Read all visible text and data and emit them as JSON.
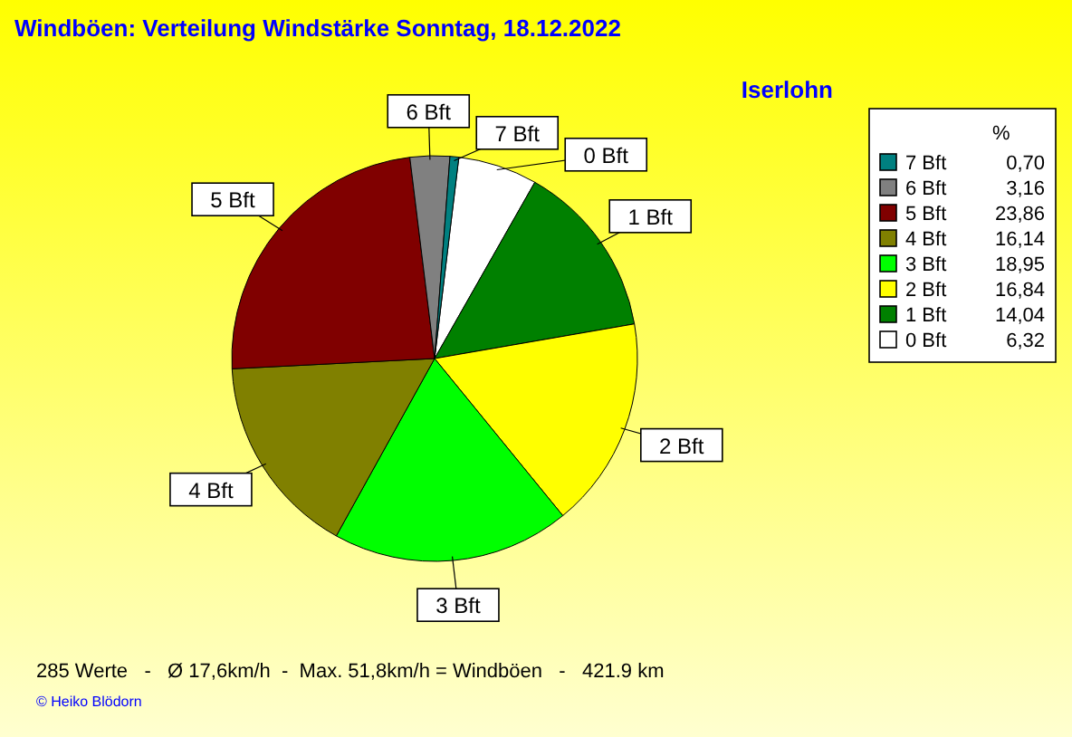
{
  "chart_data": {
    "type": "pie",
    "title": "Windböen: Verteilung Windstärke  Sonntag, 18.12.2022",
    "subtitle": "Iserlohn",
    "legend_title": "%",
    "legend": "right",
    "categories": [
      "7 Bft",
      "6 Bft",
      "5 Bft",
      "4 Bft",
      "3 Bft",
      "2 Bft",
      "1 Bft",
      "0 Bft"
    ],
    "values": [
      0.7,
      3.16,
      23.86,
      16.14,
      18.95,
      16.84,
      14.04,
      6.32
    ],
    "value_labels": [
      "0,70",
      "3,16",
      "23,86",
      "16,14",
      "18,95",
      "16,84",
      "14,04",
      "6,32"
    ],
    "colors": [
      "#008080",
      "#808080",
      "#800000",
      "#808000",
      "#00ff00",
      "#ffff00",
      "#008000",
      "#ffffff"
    ],
    "annotations": [
      "285 Werte   -   Ø 17,6km/h  -  Max. 51,8km/h = Windböen   -   421.9 km",
      "© Heiko Blödorn"
    ]
  }
}
